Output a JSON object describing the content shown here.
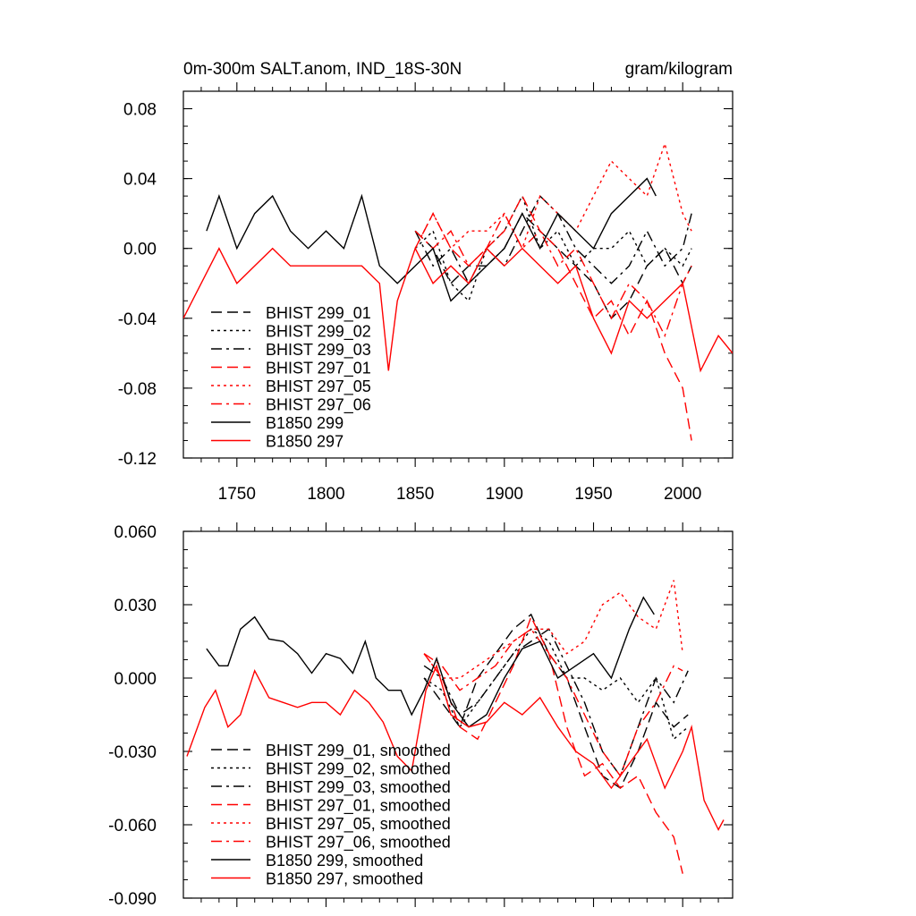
{
  "chart_data": [
    {
      "type": "line",
      "title": "0m-300m SALT.anom, IND_18S-30N",
      "units": "gram/kilogram",
      "xlim": [
        1720,
        2028
      ],
      "ylim": [
        -0.12,
        0.09
      ],
      "xticks": [
        "1750",
        "1800",
        "1850",
        "1900",
        "1950",
        "2000"
      ],
      "yticks": [
        "0.08",
        "0.04",
        "0.00",
        "-0.04",
        "-0.08",
        "-0.12"
      ],
      "series": [
        {
          "name": "BHIST 299_01",
          "color": "#000000",
          "dash": "dash",
          "x": [
            1850,
            1860,
            1870,
            1880,
            1890,
            1900,
            1910,
            1920,
            1930,
            1940,
            1950,
            1960,
            1970,
            1980,
            1990,
            2000,
            2005
          ],
          "y": [
            0.01,
            0.0,
            -0.02,
            -0.01,
            -0.01,
            0.0,
            0.02,
            0.01,
            0.0,
            -0.01,
            -0.02,
            -0.04,
            -0.03,
            -0.01,
            0.0,
            -0.02,
            -0.01
          ]
        },
        {
          "name": "BHIST 299_02",
          "color": "#000000",
          "dash": "dot",
          "x": [
            1850,
            1860,
            1870,
            1880,
            1890,
            1900,
            1910,
            1920,
            1930,
            1940,
            1950,
            1960,
            1970,
            1980,
            1990,
            2000,
            2005
          ],
          "y": [
            0.0,
            0.01,
            -0.02,
            -0.03,
            0.0,
            0.01,
            0.03,
            0.0,
            0.01,
            -0.01,
            0.0,
            0.0,
            0.01,
            -0.01,
            0.0,
            -0.01,
            0.0
          ]
        },
        {
          "name": "BHIST 299_03",
          "color": "#000000",
          "dash": "dashdot",
          "x": [
            1850,
            1860,
            1870,
            1880,
            1890,
            1900,
            1910,
            1920,
            1930,
            1940,
            1950,
            1960,
            1970,
            1980,
            1990,
            2000,
            2005
          ],
          "y": [
            0.01,
            -0.01,
            0.0,
            -0.02,
            0.0,
            -0.01,
            0.01,
            0.03,
            0.02,
            0.0,
            -0.01,
            -0.02,
            -0.01,
            0.01,
            -0.01,
            0.0,
            0.02
          ]
        },
        {
          "name": "BHIST 297_01",
          "color": "#ff0000",
          "dash": "dash",
          "x": [
            1850,
            1860,
            1870,
            1880,
            1890,
            1900,
            1910,
            1920,
            1930,
            1940,
            1950,
            1960,
            1970,
            1980,
            1990,
            2000,
            2005
          ],
          "y": [
            0.0,
            0.02,
            0.0,
            -0.01,
            0.0,
            0.01,
            0.03,
            0.01,
            0.0,
            -0.02,
            -0.04,
            -0.03,
            -0.05,
            -0.03,
            -0.06,
            -0.08,
            -0.11
          ]
        },
        {
          "name": "BHIST 297_05",
          "color": "#ff0000",
          "dash": "dot",
          "x": [
            1850,
            1860,
            1870,
            1880,
            1890,
            1900,
            1910,
            1920,
            1930,
            1940,
            1950,
            1960,
            1970,
            1980,
            1990,
            2000,
            2005
          ],
          "y": [
            0.0,
            0.02,
            0.0,
            0.01,
            0.01,
            0.02,
            0.0,
            0.03,
            0.02,
            0.01,
            0.03,
            0.05,
            0.04,
            0.03,
            0.06,
            0.02,
            0.01
          ]
        },
        {
          "name": "BHIST 297_06",
          "color": "#ff0000",
          "dash": "dashdot",
          "x": [
            1850,
            1860,
            1870,
            1880,
            1890,
            1900,
            1910,
            1920,
            1930,
            1940,
            1950,
            1960,
            1970,
            1980,
            1990,
            2000,
            2005
          ],
          "y": [
            0.01,
            0.0,
            0.01,
            -0.01,
            0.0,
            0.02,
            0.0,
            0.01,
            -0.01,
            0.0,
            -0.02,
            -0.04,
            -0.02,
            -0.03,
            -0.05,
            -0.02,
            -0.01
          ]
        },
        {
          "name": "B1850 299",
          "color": "#000000",
          "dash": "solid",
          "x": [
            1733,
            1740,
            1750,
            1760,
            1770,
            1780,
            1790,
            1800,
            1810,
            1820,
            1830,
            1840,
            1850,
            1860,
            1870,
            1880,
            1890,
            1900,
            1910,
            1920,
            1930,
            1940,
            1950,
            1960,
            1970,
            1980,
            1985
          ],
          "y": [
            0.01,
            0.03,
            0.0,
            0.02,
            0.03,
            0.01,
            0.0,
            0.01,
            0.0,
            0.03,
            -0.01,
            -0.02,
            -0.01,
            0.0,
            -0.03,
            -0.02,
            -0.01,
            0.0,
            0.02,
            0.0,
            0.02,
            0.01,
            0.0,
            0.02,
            0.03,
            0.04,
            0.03
          ]
        },
        {
          "name": "B1850 297",
          "color": "#ff0000",
          "dash": "solid",
          "x": [
            1720,
            1730,
            1740,
            1750,
            1760,
            1770,
            1780,
            1790,
            1800,
            1810,
            1820,
            1830,
            1835,
            1840,
            1850,
            1860,
            1870,
            1880,
            1890,
            1900,
            1910,
            1920,
            1930,
            1940,
            1950,
            1960,
            1970,
            1980,
            1990,
            2000,
            2010,
            2020,
            2028
          ],
          "y": [
            -0.04,
            -0.02,
            0.0,
            -0.02,
            -0.01,
            0.0,
            -0.01,
            -0.01,
            -0.01,
            -0.01,
            -0.01,
            -0.02,
            -0.07,
            -0.03,
            0.0,
            -0.02,
            -0.01,
            -0.02,
            0.0,
            -0.01,
            0.0,
            -0.01,
            -0.02,
            -0.01,
            -0.04,
            -0.06,
            -0.03,
            -0.04,
            -0.03,
            -0.02,
            -0.07,
            -0.05,
            -0.06
          ]
        }
      ]
    },
    {
      "type": "line",
      "xlim": [
        1720,
        2028
      ],
      "ylim": [
        -0.09,
        0.06
      ],
      "yticks": [
        "0.060",
        "0.030",
        "0.000",
        "-0.030",
        "-0.060",
        "-0.090"
      ],
      "series": [
        {
          "name": "BHIST 299_01, smoothed",
          "color": "#000000",
          "dash": "dash",
          "x": [
            1855,
            1865,
            1875,
            1885,
            1895,
            1905,
            1915,
            1925,
            1935,
            1945,
            1955,
            1965,
            1975,
            1985,
            1995,
            2003
          ],
          "y": [
            0.0,
            -0.01,
            -0.02,
            0.0,
            0.01,
            0.02,
            0.026,
            0.01,
            0.0,
            -0.02,
            -0.04,
            -0.045,
            -0.03,
            -0.01,
            -0.02,
            -0.015
          ]
        },
        {
          "name": "BHIST 299_02, smoothed",
          "color": "#000000",
          "dash": "dot",
          "x": [
            1855,
            1865,
            1875,
            1885,
            1895,
            1905,
            1915,
            1925,
            1935,
            1945,
            1955,
            1965,
            1975,
            1985,
            1995,
            2003
          ],
          "y": [
            0.0,
            -0.005,
            -0.02,
            -0.01,
            0.0,
            0.01,
            0.02,
            0.015,
            0.0,
            0.0,
            -0.005,
            0.0,
            -0.01,
            0.0,
            -0.025,
            -0.02
          ]
        },
        {
          "name": "BHIST 299_03, smoothed",
          "color": "#000000",
          "dash": "dashdot",
          "x": [
            1855,
            1865,
            1875,
            1885,
            1895,
            1905,
            1915,
            1925,
            1935,
            1945,
            1955,
            1965,
            1975,
            1985,
            1995,
            2003
          ],
          "y": [
            0.005,
            0.0,
            -0.015,
            -0.01,
            0.0,
            0.01,
            0.015,
            0.02,
            0.005,
            -0.01,
            -0.03,
            -0.04,
            -0.02,
            0.0,
            -0.01,
            0.003
          ]
        },
        {
          "name": "BHIST 297_01, smoothed",
          "color": "#ff0000",
          "dash": "dash",
          "x": [
            1855,
            1865,
            1875,
            1885,
            1895,
            1905,
            1915,
            1925,
            1935,
            1945,
            1955,
            1965,
            1975,
            1985,
            1995,
            2000
          ],
          "y": [
            0.01,
            0.0,
            -0.02,
            -0.025,
            -0.01,
            0.005,
            0.025,
            0.01,
            -0.02,
            -0.04,
            -0.035,
            -0.045,
            -0.04,
            -0.055,
            -0.065,
            -0.08
          ]
        },
        {
          "name": "BHIST 297_05, smoothed",
          "color": "#ff0000",
          "dash": "dot",
          "x": [
            1855,
            1865,
            1875,
            1885,
            1895,
            1905,
            1915,
            1925,
            1935,
            1945,
            1955,
            1965,
            1975,
            1985,
            1995,
            2000
          ],
          "y": [
            0.01,
            0.0,
            0.0,
            0.005,
            0.01,
            0.015,
            0.02,
            0.02,
            0.01,
            0.015,
            0.03,
            0.035,
            0.025,
            0.02,
            0.04,
            0.01
          ]
        },
        {
          "name": "BHIST 297_06, smoothed",
          "color": "#ff0000",
          "dash": "dashdot",
          "x": [
            1855,
            1865,
            1875,
            1885,
            1895,
            1905,
            1915,
            1925,
            1935,
            1945,
            1955,
            1965,
            1975,
            1985,
            1995,
            2000
          ],
          "y": [
            0.01,
            0.005,
            -0.005,
            0.0,
            0.005,
            0.015,
            0.02,
            0.01,
            0.0,
            -0.015,
            -0.03,
            -0.04,
            -0.02,
            -0.01,
            0.005,
            0.003
          ]
        },
        {
          "name": "B1850 299, smoothed",
          "color": "#000000",
          "dash": "solid",
          "x": [
            1733,
            1740,
            1745,
            1752,
            1760,
            1768,
            1776,
            1784,
            1792,
            1800,
            1808,
            1815,
            1822,
            1828,
            1835,
            1842,
            1848,
            1855,
            1862,
            1870,
            1880,
            1890,
            1900,
            1910,
            1920,
            1930,
            1940,
            1950,
            1960,
            1970,
            1978,
            1984
          ],
          "y": [
            0.012,
            0.005,
            0.005,
            0.02,
            0.025,
            0.016,
            0.015,
            0.01,
            0.002,
            0.01,
            0.008,
            0.002,
            0.015,
            0.0,
            -0.005,
            -0.005,
            -0.015,
            -0.005,
            0.008,
            -0.01,
            -0.02,
            -0.015,
            0.0,
            0.012,
            0.015,
            0.0,
            0.005,
            0.01,
            0.0,
            0.02,
            0.033,
            0.026
          ]
        },
        {
          "name": "B1850 297, smoothed",
          "color": "#ff0000",
          "dash": "solid",
          "x": [
            1722,
            1732,
            1738,
            1745,
            1752,
            1760,
            1768,
            1776,
            1784,
            1792,
            1800,
            1808,
            1816,
            1824,
            1832,
            1840,
            1848,
            1856,
            1862,
            1870,
            1880,
            1890,
            1900,
            1910,
            1920,
            1930,
            1940,
            1950,
            1960,
            1970,
            1980,
            1990,
            2000,
            2005,
            2012,
            2020,
            2023
          ],
          "y": [
            -0.032,
            -0.012,
            -0.005,
            -0.02,
            -0.015,
            0.003,
            -0.008,
            -0.01,
            -0.012,
            -0.01,
            -0.01,
            -0.015,
            -0.005,
            -0.01,
            -0.018,
            -0.032,
            -0.038,
            -0.005,
            0.005,
            -0.015,
            -0.02,
            -0.018,
            -0.01,
            -0.015,
            -0.008,
            -0.02,
            -0.03,
            -0.035,
            -0.045,
            -0.035,
            -0.025,
            -0.045,
            -0.03,
            -0.02,
            -0.05,
            -0.062,
            -0.058
          ]
        }
      ]
    }
  ]
}
